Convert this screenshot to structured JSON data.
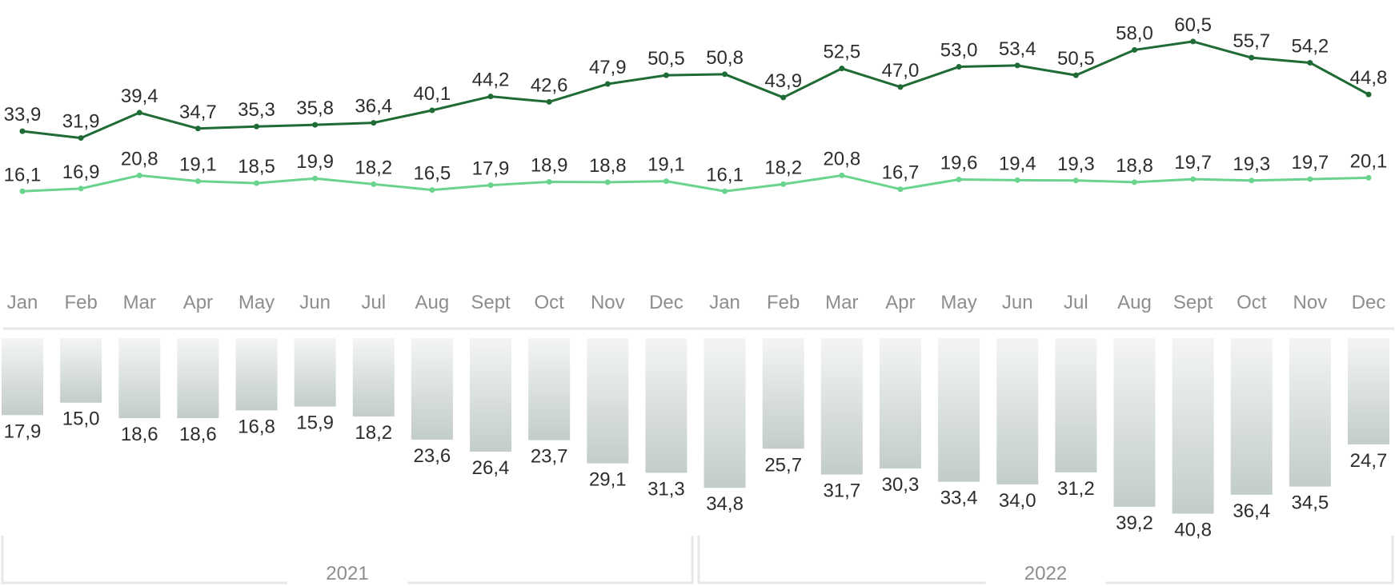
{
  "chart_data": {
    "type": "line+bar",
    "categories": [
      "Jan",
      "Feb",
      "Mar",
      "Apr",
      "May",
      "Jun",
      "Jul",
      "Aug",
      "Sept",
      "Oct",
      "Nov",
      "Dec",
      "Jan",
      "Feb",
      "Mar",
      "Apr",
      "May",
      "Jun",
      "Jul",
      "Aug",
      "Sept",
      "Oct",
      "Nov",
      "Dec"
    ],
    "year_groups": [
      {
        "label": "2021",
        "start": 0,
        "end": 11
      },
      {
        "label": "2022",
        "start": 12,
        "end": 23
      }
    ],
    "series": [
      {
        "kind": "line",
        "color": "#1f6b35",
        "values": [
          33.9,
          31.9,
          39.4,
          34.7,
          35.3,
          35.8,
          36.4,
          40.1,
          44.2,
          42.6,
          47.9,
          50.5,
          50.8,
          43.9,
          52.5,
          47.0,
          53.0,
          53.4,
          50.5,
          58.0,
          60.5,
          55.7,
          54.2,
          44.8
        ],
        "value_labels": [
          "33,9",
          "31,9",
          "39,4",
          "34,7",
          "35,3",
          "35,8",
          "36,4",
          "40,1",
          "44,2",
          "42,6",
          "47,9",
          "50,5",
          "50,8",
          "43,9",
          "52,5",
          "47,0",
          "53,0",
          "53,4",
          "50,5",
          "58,0",
          "60,5",
          "55,7",
          "54,2",
          "44,8"
        ]
      },
      {
        "kind": "line",
        "color": "#6ad48e",
        "values": [
          16.1,
          16.9,
          20.8,
          19.1,
          18.5,
          19.9,
          18.2,
          16.5,
          17.9,
          18.9,
          18.8,
          19.1,
          16.1,
          18.2,
          20.8,
          16.7,
          19.6,
          19.4,
          19.3,
          18.8,
          19.7,
          19.3,
          19.7,
          20.1
        ],
        "value_labels": [
          "16,1",
          "16,9",
          "20,8",
          "19,1",
          "18,5",
          "19,9",
          "18,2",
          "16,5",
          "17,9",
          "18,9",
          "18,8",
          "19,1",
          "16,1",
          "18,2",
          "20,8",
          "16,7",
          "19,6",
          "19,4",
          "19,3",
          "18,8",
          "19,7",
          "19,3",
          "19,7",
          "20,1"
        ]
      },
      {
        "kind": "bar",
        "direction": "down",
        "color": "#c3cdc7",
        "values": [
          17.9,
          15.0,
          18.6,
          18.6,
          16.8,
          15.9,
          18.2,
          23.6,
          26.4,
          23.7,
          29.1,
          31.3,
          34.8,
          25.7,
          31.7,
          30.3,
          33.4,
          34.0,
          31.2,
          39.2,
          40.8,
          36.4,
          34.5,
          24.7
        ],
        "value_labels": [
          "17,9",
          "15,0",
          "18,6",
          "18,6",
          "16,8",
          "15,9",
          "18,2",
          "23,6",
          "26,4",
          "23,7",
          "29,1",
          "31,3",
          "34,8",
          "25,7",
          "31,7",
          "30,3",
          "33,4",
          "34,0",
          "31,2",
          "39,2",
          "40,8",
          "36,4",
          "34,5",
          "24,7"
        ]
      }
    ],
    "colors": {
      "dark_line": "#1f6b35",
      "light_line": "#6ad48e",
      "bar_top": "#f2f4f3",
      "bar_bottom": "#c3cdc7",
      "axis": "#e4e8e6",
      "month_text": "#8b8f8c",
      "value_text": "#2b2f2c"
    }
  }
}
